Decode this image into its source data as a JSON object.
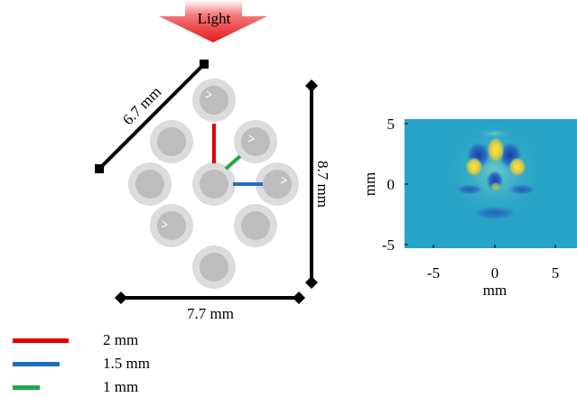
{
  "light_label": "Light",
  "dimensions": {
    "diagonal": "6.7 mm",
    "height": "8.7 mm",
    "width": "7.7 mm"
  },
  "legend": [
    {
      "label": "2 mm",
      "color": "#e60000"
    },
    {
      "label": "1.5 mm",
      "color": "#1f6fbf"
    },
    {
      "label": "1 mm",
      "color": "#1ea84a"
    }
  ],
  "heatmap": {
    "ylabel": "mm",
    "xlabel": "mm",
    "y_ticks": [
      "5",
      "0",
      "-5"
    ],
    "x_ticks": [
      "-5",
      "0",
      "5"
    ],
    "xlim": [
      -7,
      7
    ],
    "ylim": [
      -5.5,
      5.5
    ],
    "colormap": "parula"
  },
  "colors": {
    "light_arrow": "#ee2222",
    "node_outer": "#dcdcdc",
    "node_inner": "#bdbdbd",
    "heatmap_background": "#2aa6c8",
    "hotspot": "#f2d42a"
  }
}
